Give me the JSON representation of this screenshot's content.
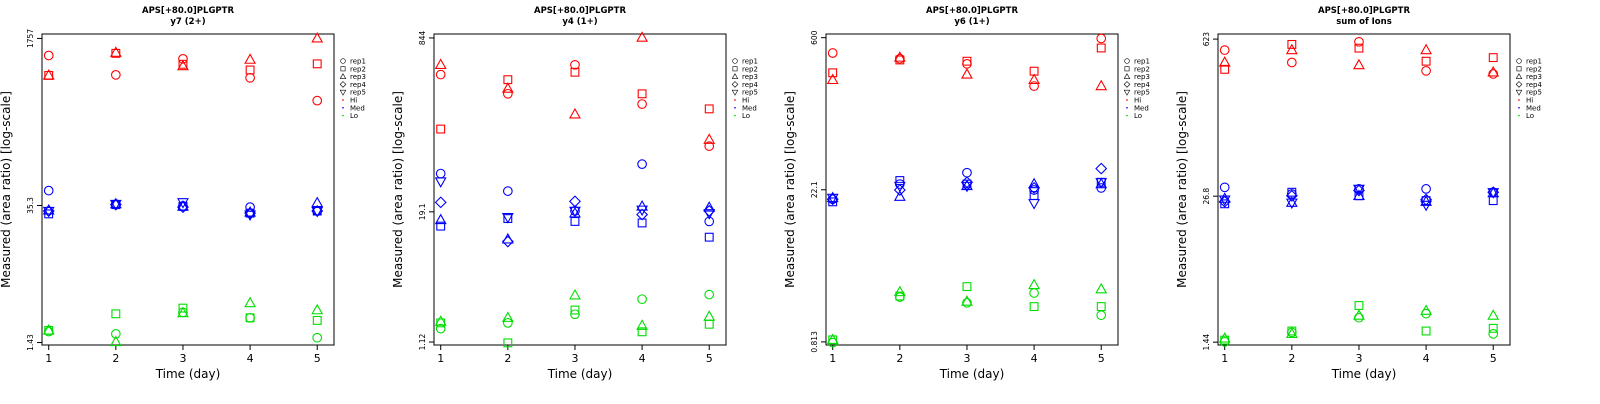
{
  "colors": {
    "Hi": "#ff0000",
    "Med": "#0000ff",
    "Lo": "#00dd00",
    "axis": "#000000"
  },
  "legend": {
    "entries": [
      {
        "label": "rep1",
        "shape": "circle"
      },
      {
        "label": "rep2",
        "shape": "square"
      },
      {
        "label": "rep3",
        "shape": "triangle-up"
      },
      {
        "label": "rep4",
        "shape": "diamond"
      },
      {
        "label": "rep5",
        "shape": "triangle-down"
      },
      {
        "label": "Hi",
        "shape": "dot",
        "level": "Hi"
      },
      {
        "label": "Med",
        "shape": "dot",
        "level": "Med"
      },
      {
        "label": "Lo",
        "shape": "dot",
        "level": "Lo"
      }
    ],
    "placement": "right"
  },
  "chart_data": [
    {
      "type": "scatter",
      "title": "APS[+80.0]PLGPTR",
      "subtitle": "y7 (2+)",
      "xlabel": "Time (day)",
      "ylabel": "Measured (area ratio) [log-scale]",
      "xticks": [
        1,
        2,
        3,
        4,
        5
      ],
      "xlim": [
        0.9,
        5.25
      ],
      "yscale": "log",
      "ylim": [
        1.35,
        1950
      ],
      "yticks": [
        1.43,
        35.3,
        1757
      ],
      "ytick_labels": [
        "1.43",
        "35.3",
        "1757"
      ],
      "series": [
        {
          "name": "rep1",
          "level": "Hi",
          "x": [
            1,
            2,
            3,
            4,
            5
          ],
          "y": [
            1180,
            750,
            1090,
            700,
            410
          ]
        },
        {
          "name": "rep2",
          "level": "Hi",
          "x": [
            1,
            2,
            3,
            4,
            5
          ],
          "y": [
            740,
            1240,
            960,
            840,
            970
          ]
        },
        {
          "name": "rep3",
          "level": "Hi",
          "x": [
            1,
            2,
            3,
            4,
            5
          ],
          "y": [
            740,
            1260,
            920,
            1070,
            1760
          ]
        },
        {
          "name": "rep1",
          "level": "Med",
          "x": [
            1,
            2,
            3,
            4,
            5
          ],
          "y": [
            50,
            36.5,
            35,
            34,
            31
          ]
        },
        {
          "name": "rep2",
          "level": "Med",
          "x": [
            1,
            2,
            3,
            4,
            5
          ],
          "y": [
            29,
            36,
            34.5,
            29.5,
            31
          ]
        },
        {
          "name": "rep3",
          "level": "Med",
          "x": [
            1,
            2,
            3,
            4,
            5
          ],
          "y": [
            31.5,
            36.5,
            34.5,
            30,
            37.5
          ]
        },
        {
          "name": "rep4",
          "level": "Med",
          "x": [
            1,
            2,
            3,
            4,
            5
          ],
          "y": [
            31,
            36,
            34,
            29.5,
            31
          ]
        },
        {
          "name": "rep5",
          "level": "Med",
          "x": [
            1,
            2,
            3,
            4,
            5
          ],
          "y": [
            31,
            36.5,
            38,
            28.5,
            31
          ]
        },
        {
          "name": "rep1",
          "level": "Lo",
          "x": [
            1,
            2,
            3,
            4,
            5
          ],
          "y": [
            1.85,
            1.75,
            2.9,
            2.55,
            1.6
          ]
        },
        {
          "name": "rep2",
          "level": "Lo",
          "x": [
            1,
            2,
            3,
            4,
            5
          ],
          "y": [
            1.9,
            2.8,
            3.2,
            2.55,
            2.4
          ]
        },
        {
          "name": "rep3",
          "level": "Lo",
          "x": [
            1,
            2,
            3,
            4,
            5
          ],
          "y": [
            1.9,
            1.45,
            2.85,
            3.6,
            3.05
          ]
        }
      ]
    },
    {
      "type": "scatter",
      "title": "APS[+80.0]PLGPTR",
      "subtitle": "y4 (1+)",
      "xlabel": "Time (day)",
      "ylabel": "Measured (area ratio) [log-scale]",
      "xticks": [
        1,
        2,
        3,
        4,
        5
      ],
      "xlim": [
        0.9,
        5.25
      ],
      "yscale": "log",
      "ylim": [
        1.05,
        920
      ],
      "yticks": [
        1.12,
        19.1,
        844
      ],
      "ytick_labels": [
        "1.12",
        "19.1",
        "844"
      ],
      "series": [
        {
          "name": "rep1",
          "level": "Hi",
          "x": [
            1,
            2,
            3,
            4,
            5
          ],
          "y": [
            380,
            250,
            470,
            200,
            80
          ]
        },
        {
          "name": "rep2",
          "level": "Hi",
          "x": [
            1,
            2,
            3,
            4,
            5
          ],
          "y": [
            116,
            340,
            400,
            250,
            180
          ]
        },
        {
          "name": "rep3",
          "level": "Hi",
          "x": [
            1,
            2,
            3,
            4,
            5
          ],
          "y": [
            470,
            280,
            160,
            850,
            92
          ]
        },
        {
          "name": "rep1",
          "level": "Med",
          "x": [
            1,
            2,
            3,
            4,
            5
          ],
          "y": [
            44,
            30,
            19.5,
            54,
            15.5
          ]
        },
        {
          "name": "rep2",
          "level": "Med",
          "x": [
            1,
            2,
            3,
            4,
            5
          ],
          "y": [
            14,
            16.5,
            15.5,
            15,
            11
          ]
        },
        {
          "name": "rep3",
          "level": "Med",
          "x": [
            1,
            2,
            3,
            4,
            5
          ],
          "y": [
            16,
            10.5,
            18.5,
            21.5,
            21
          ]
        },
        {
          "name": "rep4",
          "level": "Med",
          "x": [
            1,
            2,
            3,
            4,
            5
          ],
          "y": [
            23.5,
            10,
            24,
            18,
            19.5
          ]
        },
        {
          "name": "rep5",
          "level": "Med",
          "x": [
            1,
            2,
            3,
            4,
            5
          ],
          "y": [
            37,
            17,
            19.5,
            20,
            18.5
          ]
        },
        {
          "name": "rep1",
          "level": "Lo",
          "x": [
            1,
            2,
            3,
            4,
            5
          ],
          "y": [
            1.5,
            1.7,
            2.05,
            2.85,
            3.15
          ]
        },
        {
          "name": "rep2",
          "level": "Lo",
          "x": [
            1,
            2,
            3,
            4,
            5
          ],
          "y": [
            1.7,
            1.1,
            2.25,
            1.4,
            1.65
          ]
        },
        {
          "name": "rep3",
          "level": "Lo",
          "x": [
            1,
            2,
            3,
            4,
            5
          ],
          "y": [
            1.75,
            1.9,
            3.1,
            1.6,
            1.95
          ]
        }
      ]
    },
    {
      "type": "scatter",
      "title": "APS[+80.0]PLGPTR",
      "subtitle": "y6 (1+)",
      "xlabel": "Time (day)",
      "ylabel": "Measured (area ratio) [log-scale]",
      "xticks": [
        1,
        2,
        3,
        4,
        5
      ],
      "xlim": [
        0.9,
        5.25
      ],
      "yscale": "log",
      "ylim": [
        0.76,
        650
      ],
      "yticks": [
        0.813,
        22.1,
        600
      ],
      "ytick_labels": [
        "0.813",
        "22.1",
        "600"
      ],
      "series": [
        {
          "name": "rep1",
          "level": "Hi",
          "x": [
            1,
            2,
            3,
            4,
            5
          ],
          "y": [
            430,
            380,
            340,
            210,
            590
          ]
        },
        {
          "name": "rep2",
          "level": "Hi",
          "x": [
            1,
            2,
            3,
            4,
            5
          ],
          "y": [
            280,
            370,
            360,
            290,
            480
          ]
        },
        {
          "name": "rep3",
          "level": "Hi",
          "x": [
            1,
            2,
            3,
            4,
            5
          ],
          "y": [
            240,
            390,
            270,
            240,
            210
          ]
        },
        {
          "name": "rep1",
          "level": "Med",
          "x": [
            1,
            2,
            3,
            4,
            5
          ],
          "y": [
            18,
            25,
            32,
            22,
            23
          ]
        },
        {
          "name": "rep2",
          "level": "Med",
          "x": [
            1,
            2,
            3,
            4,
            5
          ],
          "y": [
            17,
            27,
            25,
            19.5,
            26
          ]
        },
        {
          "name": "rep3",
          "level": "Med",
          "x": [
            1,
            2,
            3,
            4,
            5
          ],
          "y": [
            18.5,
            19,
            24,
            25,
            25
          ]
        },
        {
          "name": "rep4",
          "level": "Med",
          "x": [
            1,
            2,
            3,
            4,
            5
          ],
          "y": [
            18,
            22,
            26,
            23,
            35
          ]
        },
        {
          "name": "rep5",
          "level": "Med",
          "x": [
            1,
            2,
            3,
            4,
            5
          ],
          "y": [
            18.5,
            24,
            24,
            16.5,
            26
          ]
        },
        {
          "name": "rep1",
          "level": "Lo",
          "x": [
            1,
            2,
            3,
            4,
            5
          ],
          "y": [
            0.8,
            2.15,
            1.9,
            2.35,
            1.45
          ]
        },
        {
          "name": "rep2",
          "level": "Lo",
          "x": [
            1,
            2,
            3,
            4,
            5
          ],
          "y": [
            0.85,
            2.2,
            2.7,
            1.75,
            1.75
          ]
        },
        {
          "name": "rep3",
          "level": "Lo",
          "x": [
            1,
            2,
            3,
            4,
            5
          ],
          "y": [
            0.85,
            2.4,
            1.95,
            2.8,
            2.55
          ]
        }
      ]
    },
    {
      "type": "scatter",
      "title": "APS[+80.0]PLGPTR",
      "subtitle": "sum of Ions",
      "xlabel": "Time (day)",
      "ylabel": "Measured (area ratio) [log-scale]",
      "xticks": [
        1,
        2,
        3,
        4,
        5
      ],
      "xlim": [
        0.9,
        5.25
      ],
      "yscale": "log",
      "ylim": [
        1.36,
        690
      ],
      "yticks": [
        1.44,
        26.8,
        623
      ],
      "ytick_labels": [
        "1.44",
        "26.8",
        "623"
      ],
      "series": [
        {
          "name": "rep1",
          "level": "Hi",
          "x": [
            1,
            2,
            3,
            4,
            5
          ],
          "y": [
            500,
            390,
            590,
            330,
            310
          ]
        },
        {
          "name": "rep2",
          "level": "Hi",
          "x": [
            1,
            2,
            3,
            4,
            5
          ],
          "y": [
            340,
            560,
            520,
            400,
            430
          ]
        },
        {
          "name": "rep3",
          "level": "Hi",
          "x": [
            1,
            2,
            3,
            4,
            5
          ],
          "y": [
            390,
            500,
            370,
            500,
            320
          ]
        },
        {
          "name": "rep1",
          "level": "Med",
          "x": [
            1,
            2,
            3,
            4,
            5
          ],
          "y": [
            32,
            28,
            31,
            31,
            29
          ]
        },
        {
          "name": "rep2",
          "level": "Med",
          "x": [
            1,
            2,
            3,
            4,
            5
          ],
          "y": [
            23,
            29,
            27,
            24.5,
            24.5
          ]
        },
        {
          "name": "rep3",
          "level": "Med",
          "x": [
            1,
            2,
            3,
            4,
            5
          ],
          "y": [
            25.5,
            23.5,
            27,
            24,
            28.5
          ]
        },
        {
          "name": "rep4",
          "level": "Med",
          "x": [
            1,
            2,
            3,
            4,
            5
          ],
          "y": [
            24,
            27,
            30,
            25,
            29
          ]
        },
        {
          "name": "rep5",
          "level": "Med",
          "x": [
            1,
            2,
            3,
            4,
            5
          ],
          "y": [
            25,
            23.5,
            31,
            22.5,
            29
          ]
        },
        {
          "name": "rep1",
          "level": "Lo",
          "x": [
            1,
            2,
            3,
            4,
            5
          ],
          "y": [
            1.45,
            1.75,
            2.35,
            2.55,
            1.7
          ]
        },
        {
          "name": "rep2",
          "level": "Lo",
          "x": [
            1,
            2,
            3,
            4,
            5
          ],
          "y": [
            1.5,
            1.8,
            3.0,
            1.8,
            1.9
          ]
        },
        {
          "name": "rep3",
          "level": "Lo",
          "x": [
            1,
            2,
            3,
            4,
            5
          ],
          "y": [
            1.55,
            1.7,
            2.45,
            2.7,
            2.45
          ]
        }
      ]
    }
  ]
}
